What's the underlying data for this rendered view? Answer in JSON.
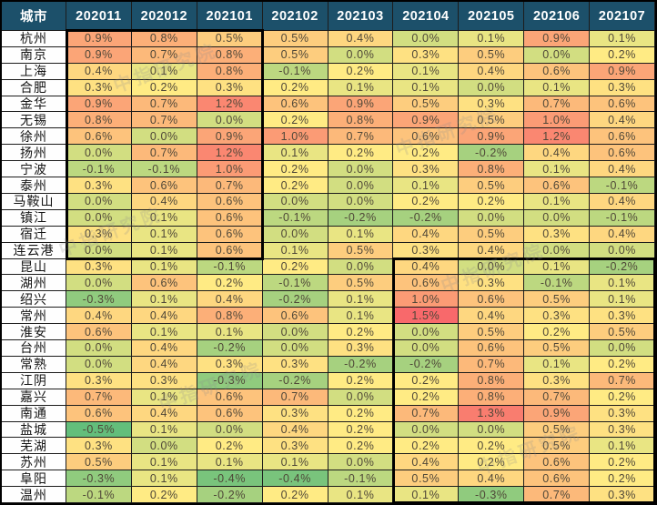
{
  "colors": {
    "header_bg": "#1C506A",
    "header_text": "#FFFFFF",
    "grid_line": "#1C1C1C",
    "city_bg": "#FEFEFE",
    "value_text": "#4F4738",
    "block_border": "#000000"
  },
  "watermark": {
    "text": "中指研究院",
    "color": "rgba(140,140,140,0.22)"
  },
  "chart_data": {
    "type": "heatmap",
    "city_label": "城市",
    "unit": "%",
    "columns": [
      "202011",
      "202012",
      "202101",
      "202102",
      "202103",
      "202104",
      "202105",
      "202106",
      "202107"
    ],
    "rows": [
      {
        "city": "杭州",
        "values": [
          0.9,
          0.8,
          0.5,
          0.5,
          0.4,
          0.0,
          0.1,
          0.9,
          0.1
        ]
      },
      {
        "city": "南京",
        "values": [
          0.9,
          0.7,
          0.8,
          0.5,
          0.0,
          0.3,
          0.5,
          0.0,
          0.2
        ]
      },
      {
        "city": "上海",
        "values": [
          0.4,
          0.1,
          0.8,
          -0.1,
          0.2,
          0.1,
          0.4,
          0.6,
          0.9
        ]
      },
      {
        "city": "合肥",
        "values": [
          0.3,
          0.2,
          0.3,
          0.2,
          0.1,
          0.1,
          0.0,
          0.1,
          0.3
        ]
      },
      {
        "city": "金华",
        "values": [
          0.9,
          0.7,
          1.2,
          0.6,
          0.9,
          0.5,
          0.3,
          0.7,
          0.6
        ]
      },
      {
        "city": "无锡",
        "values": [
          0.8,
          0.7,
          0.0,
          0.2,
          0.8,
          0.9,
          0.5,
          1.0,
          0.4
        ]
      },
      {
        "city": "徐州",
        "values": [
          0.6,
          0.0,
          0.9,
          1.0,
          0.7,
          0.6,
          0.9,
          1.2,
          0.6
        ]
      },
      {
        "city": "扬州",
        "values": [
          0.0,
          0.7,
          1.2,
          0.1,
          0.2,
          0.2,
          -0.2,
          0.4,
          0.6
        ]
      },
      {
        "city": "宁波",
        "values": [
          -0.1,
          -0.1,
          1.0,
          0.2,
          0.0,
          0.3,
          0.8,
          0.1,
          0.4
        ]
      },
      {
        "city": "泰州",
        "values": [
          0.3,
          0.6,
          0.7,
          0.2,
          0.0,
          0.1,
          0.5,
          0.6,
          -0.1
        ]
      },
      {
        "city": "马鞍山",
        "values": [
          0.0,
          0.4,
          0.6,
          0.0,
          0.0,
          0.2,
          0.2,
          0.1,
          0.4
        ]
      },
      {
        "city": "镇江",
        "values": [
          0.0,
          0.1,
          0.6,
          -0.1,
          -0.2,
          -0.2,
          0.0,
          0.0,
          -0.1
        ]
      },
      {
        "city": "宿迁",
        "values": [
          0.3,
          0.1,
          0.6,
          0.0,
          0.1,
          0.4,
          0.5,
          0.3,
          0.4
        ]
      },
      {
        "city": "连云港",
        "values": [
          0.0,
          0.1,
          0.6,
          0.1,
          0.5,
          0.3,
          0.4,
          0.0,
          0.0
        ]
      },
      {
        "city": "昆山",
        "values": [
          0.3,
          0.1,
          -0.1,
          0.2,
          0.0,
          0.4,
          0.0,
          0.1,
          -0.2
        ]
      },
      {
        "city": "湖州",
        "values": [
          0.0,
          0.6,
          0.2,
          -0.1,
          0.5,
          0.6,
          0.3,
          -0.1,
          0.1
        ]
      },
      {
        "city": "绍兴",
        "values": [
          -0.3,
          0.1,
          0.4,
          -0.2,
          0.1,
          1.0,
          0.6,
          0.5,
          0.1
        ]
      },
      {
        "city": "常州",
        "values": [
          0.4,
          0.4,
          0.8,
          0.6,
          0.1,
          1.5,
          0.4,
          0.3,
          0.3
        ]
      },
      {
        "city": "淮安",
        "values": [
          0.6,
          0.1,
          0.1,
          0.0,
          0.2,
          0.0,
          0.5,
          0.2,
          0.5
        ]
      },
      {
        "city": "台州",
        "values": [
          0.0,
          0.4,
          -0.2,
          0.0,
          0.3,
          0.0,
          0.6,
          0.5,
          0.0
        ]
      },
      {
        "city": "常熟",
        "values": [
          0.0,
          0.4,
          0.3,
          0.3,
          -0.2,
          -0.2,
          0.7,
          0.1,
          0.2
        ]
      },
      {
        "city": "江阴",
        "values": [
          0.3,
          0.3,
          -0.3,
          -0.2,
          0.2,
          0.2,
          0.8,
          0.3,
          0.7
        ]
      },
      {
        "city": "嘉兴",
        "values": [
          0.7,
          0.1,
          0.6,
          0.7,
          0.0,
          0.2,
          0.8,
          0.7,
          0.2
        ]
      },
      {
        "city": "南通",
        "values": [
          0.6,
          0.4,
          0.6,
          0.3,
          0.2,
          0.7,
          1.3,
          0.9,
          0.3
        ]
      },
      {
        "city": "盐城",
        "values": [
          -0.5,
          0.1,
          0.0,
          0.4,
          0.2,
          0.0,
          0.0,
          0.5,
          0.3
        ]
      },
      {
        "city": "芜湖",
        "values": [
          0.3,
          0.0,
          0.2,
          0.3,
          0.2,
          0.2,
          0.2,
          0.5,
          0.1
        ]
      },
      {
        "city": "苏州",
        "values": [
          0.5,
          0.1,
          0.1,
          0.1,
          0.0,
          0.4,
          0.2,
          0.6,
          0.2
        ]
      },
      {
        "city": "阜阳",
        "values": [
          -0.3,
          0.1,
          -0.4,
          -0.4,
          -0.1,
          0.5,
          0.4,
          0.6,
          0.2
        ]
      },
      {
        "city": "温州",
        "values": [
          -0.1,
          0.2,
          -0.2,
          0.2,
          0.1,
          0.1,
          -0.3,
          0.7,
          0.3
        ]
      }
    ],
    "color_scale": {
      "min_value": -0.5,
      "min_color": "#63BE7B",
      "mid_value": 0.2,
      "mid_color": "#FFEB84",
      "max_value": 1.5,
      "max_color": "#F8696B"
    },
    "highlight_blocks": [
      {
        "row_start": 0,
        "row_end": 13,
        "col_start": 0,
        "col_end": 2
      },
      {
        "row_start": 14,
        "row_end": 28,
        "col_start": 5,
        "col_end": 8
      }
    ]
  }
}
